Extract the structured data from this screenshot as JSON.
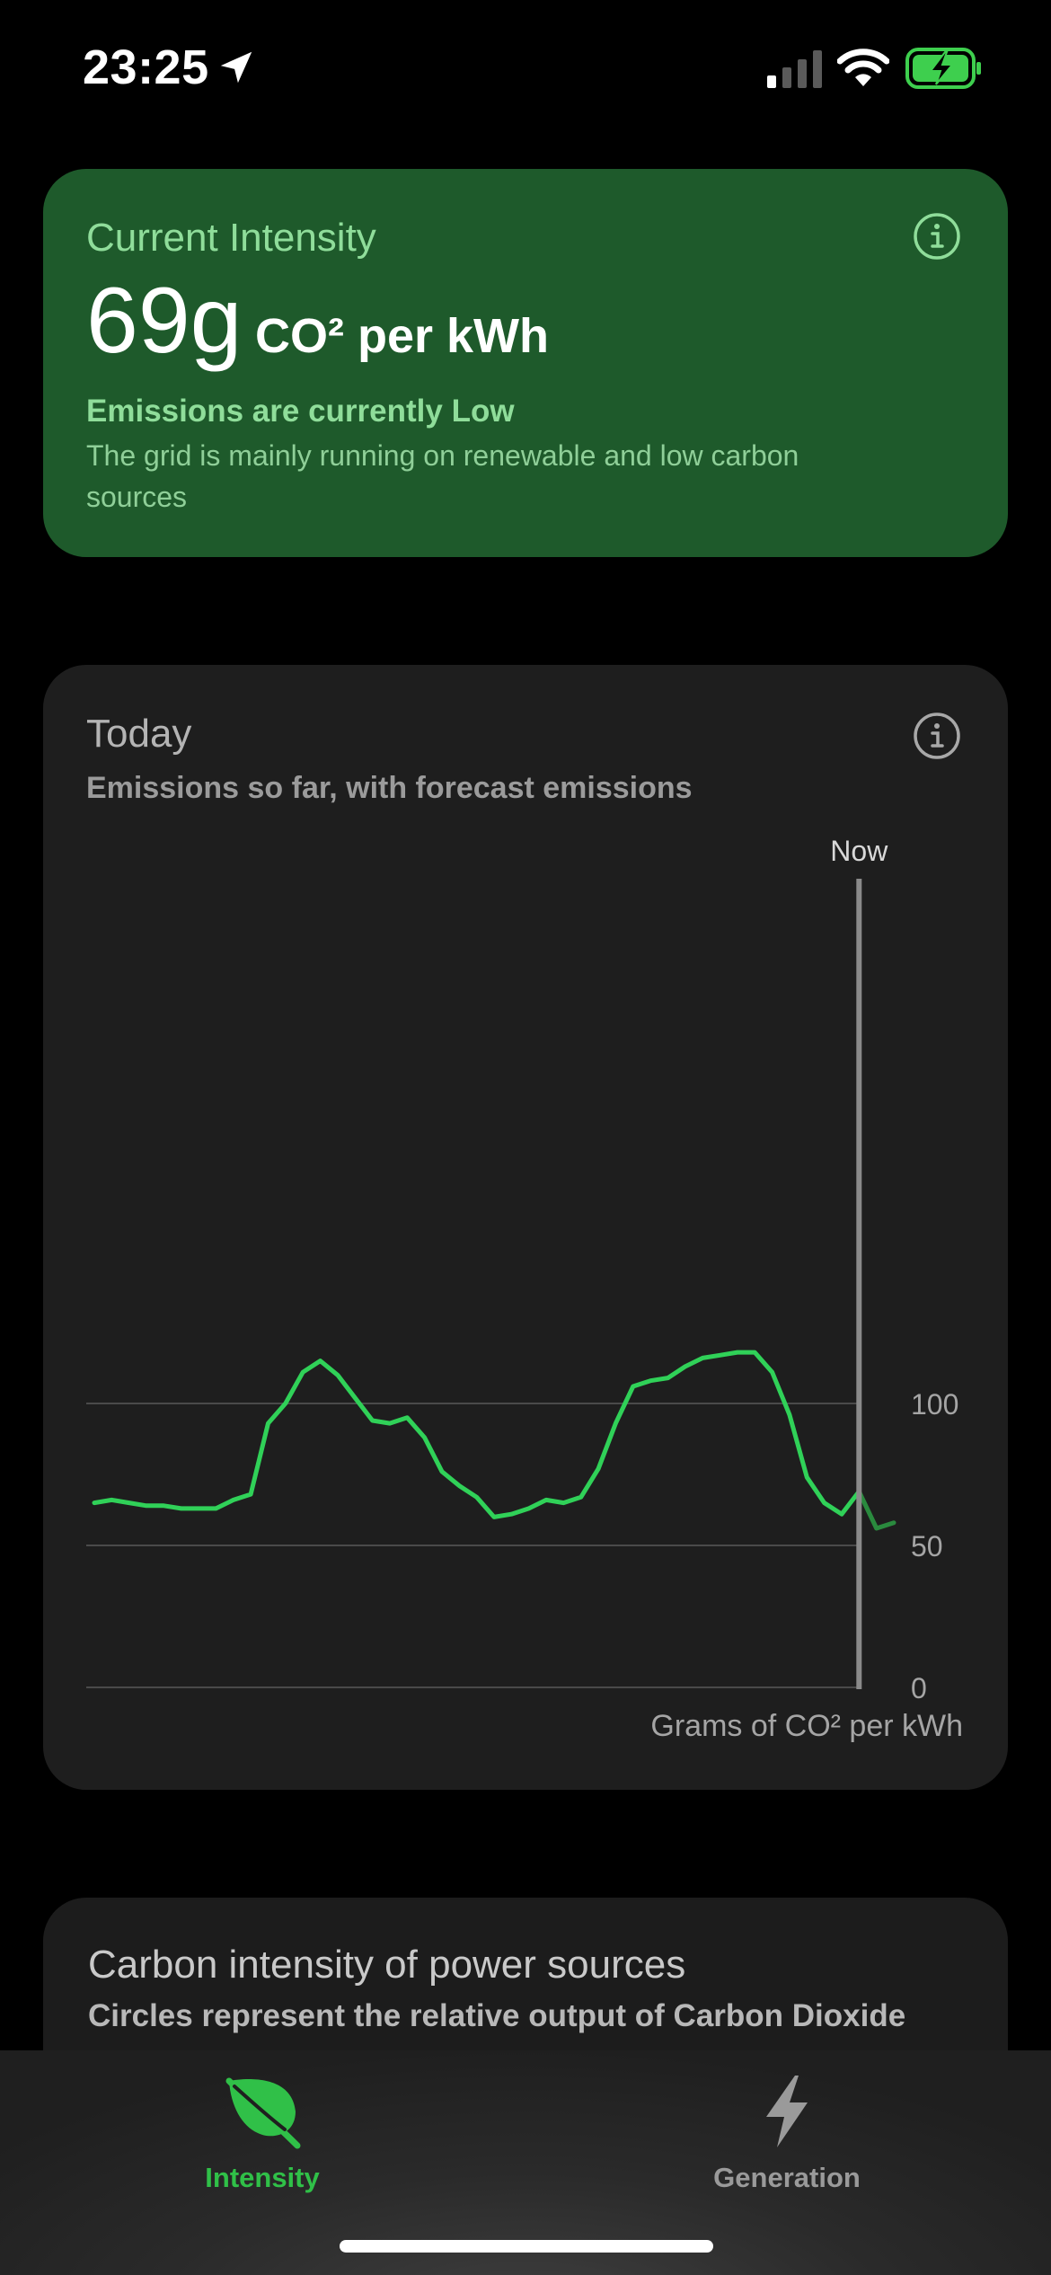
{
  "status_bar": {
    "time": "23:25"
  },
  "current": {
    "label": "Current Intensity",
    "value": "69g",
    "unit": "CO² per kWh",
    "status": "Emissions are currently Low",
    "description": "The grid is mainly running on renewable and low carbon sources"
  },
  "today": {
    "title": "Today",
    "subtitle": "Emissions so far, with forecast emissions",
    "now_label": "Now",
    "axis_label": "Grams of CO² per kWh"
  },
  "chart_data": {
    "type": "line",
    "ylim": [
      0,
      130
    ],
    "yticks": [
      0,
      50,
      100
    ],
    "ytick_labels": [
      "0",
      "50",
      "100"
    ],
    "grid": true,
    "now_index": 45,
    "colors": {
      "actual": "#30d158",
      "forecast": "#2a8a3e",
      "now_line": "#8a8a8a"
    },
    "series": [
      {
        "values": [
          65,
          66,
          65,
          64,
          64,
          63,
          63,
          63,
          66,
          68,
          93,
          100,
          111,
          115,
          110,
          102,
          94,
          93,
          95,
          88,
          76,
          71,
          67,
          60,
          61,
          63,
          66,
          65,
          67,
          77,
          93,
          106,
          108,
          109,
          113,
          116,
          117,
          118,
          118,
          111,
          96,
          74,
          65,
          61,
          69,
          56,
          58
        ]
      }
    ]
  },
  "sources": {
    "title": "Carbon intensity of power sources",
    "subtitle": "Circles represent the relative output of Carbon Dioxide"
  },
  "tabs": [
    {
      "label": "Intensity",
      "icon": "leaf-icon",
      "active": true
    },
    {
      "label": "Generation",
      "icon": "bolt-icon",
      "active": false
    }
  ],
  "theme": {
    "accent": "#30c048",
    "inactive": "#9a9a9a"
  }
}
